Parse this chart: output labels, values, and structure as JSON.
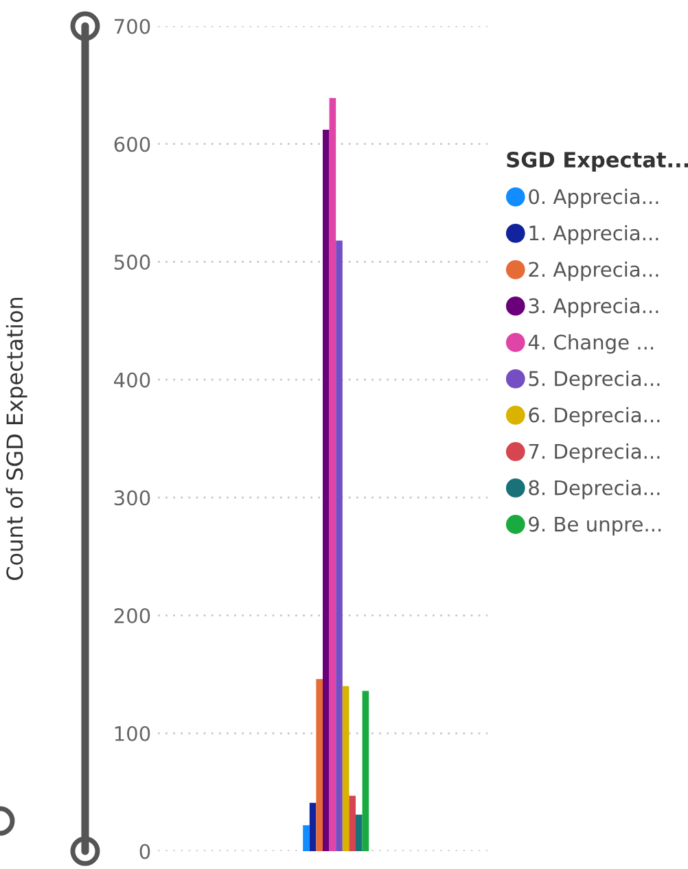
{
  "chart_data": {
    "type": "bar",
    "ylabel": "Count of SGD Expectation",
    "legend_title": "SGD Expectat...",
    "categories": [
      null
    ],
    "series": [
      {
        "name": "0. Apprecia...",
        "color": "#118dff",
        "values": [
          22
        ]
      },
      {
        "name": "1. Apprecia...",
        "color": "#12239e",
        "values": [
          41
        ]
      },
      {
        "name": "2. Apprecia...",
        "color": "#e66c37",
        "values": [
          146
        ]
      },
      {
        "name": "3. Apprecia...",
        "color": "#6b007b",
        "values": [
          612
        ]
      },
      {
        "name": "4. Change ...",
        "color": "#e044a7",
        "values": [
          639
        ]
      },
      {
        "name": "5. Deprecia...",
        "color": "#744ec2",
        "values": [
          518
        ]
      },
      {
        "name": "6. Deprecia...",
        "color": "#d9b300",
        "values": [
          140
        ]
      },
      {
        "name": "7. Deprecia...",
        "color": "#d64550",
        "values": [
          47
        ]
      },
      {
        "name": "8. Deprecia...",
        "color": "#197278",
        "values": [
          31
        ]
      },
      {
        "name": "9. Be unpre...",
        "color": "#1aab40",
        "values": [
          136
        ]
      }
    ],
    "ylim": [
      0,
      700
    ],
    "yticks": [
      0,
      100,
      200,
      300,
      400,
      500,
      600,
      700
    ],
    "grid": "y",
    "legend": "right",
    "marker": "circle"
  }
}
